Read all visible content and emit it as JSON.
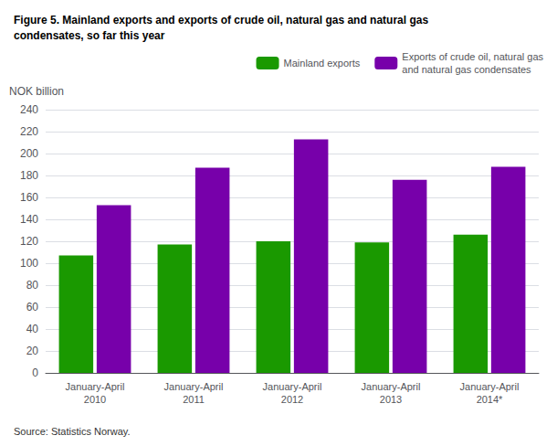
{
  "chart_data": {
    "type": "bar",
    "title": "Figure 5. Mainland exports and exports of crude oil, natural gas and natural gas\ncondensates, so far this year",
    "ylabel": "NOK billion",
    "source": "Source: Statistics Norway.",
    "categories": [
      "January-April\n2010",
      "January-April\n2011",
      "January-April\n2012",
      "January-April\n2013",
      "January-April\n2014*"
    ],
    "series": [
      {
        "name": "Mainland exports",
        "color": "#1a9900",
        "values": [
          107,
          117,
          120,
          119,
          126
        ]
      },
      {
        "name": "Exports of crude oil, natural gas\nand natural gas condensates",
        "color": "#7700aa",
        "values": [
          153,
          187,
          213,
          176,
          188
        ]
      }
    ],
    "ylim": [
      0,
      240
    ],
    "yticks": [
      0,
      20,
      40,
      60,
      80,
      100,
      120,
      140,
      160,
      180,
      200,
      220,
      240
    ],
    "grid": true,
    "legend": "upper right"
  }
}
